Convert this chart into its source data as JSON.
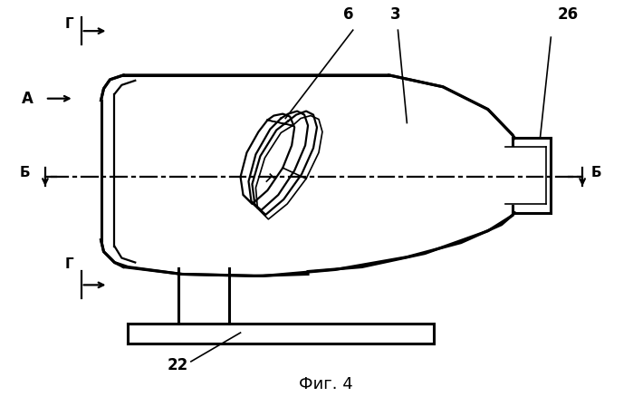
{
  "bg_color": "#ffffff",
  "line_color": "#000000",
  "title": "Фиг. 4",
  "labels": {
    "G_top": "Г",
    "A": "А",
    "B_left": "Б",
    "B_right": "Б",
    "G_bottom": "Г",
    "num_6": "6",
    "num_3": "3",
    "num_26": "26",
    "num_22": "22"
  },
  "figsize": [
    6.99,
    4.38
  ],
  "dpi": 100
}
